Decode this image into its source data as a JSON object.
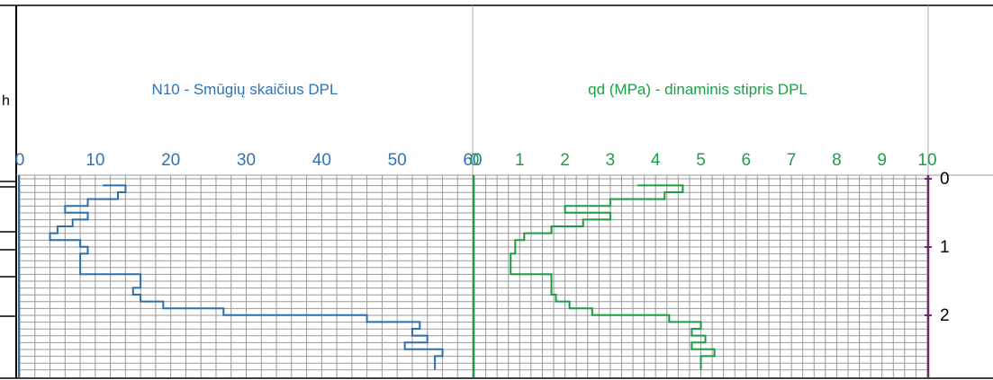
{
  "left_fragment": "h",
  "chart_data": [
    {
      "type": "line",
      "title": "N10 - Smūgių skaičius DPL",
      "xlim": [
        0,
        60
      ],
      "x_ticks": [
        "0",
        "10",
        "20",
        "30",
        "40",
        "50",
        "60"
      ],
      "ylim": [
        0,
        2.85
      ],
      "color": "#2f6fa8",
      "series": [
        {
          "values": [
            [
              11,
              0.15
            ],
            [
              14,
              0.15
            ],
            [
              14,
              0.25
            ],
            [
              13,
              0.25
            ],
            [
              13,
              0.35
            ],
            [
              9,
              0.35
            ],
            [
              9,
              0.45
            ],
            [
              6,
              0.45
            ],
            [
              6,
              0.55
            ],
            [
              9,
              0.55
            ],
            [
              9,
              0.65
            ],
            [
              7,
              0.65
            ],
            [
              7,
              0.75
            ],
            [
              5,
              0.75
            ],
            [
              5,
              0.85
            ],
            [
              4,
              0.85
            ],
            [
              4,
              0.95
            ],
            [
              8,
              0.95
            ],
            [
              8,
              1.05
            ],
            [
              9,
              1.05
            ],
            [
              9,
              1.15
            ],
            [
              8,
              1.15
            ],
            [
              8,
              1.45
            ],
            [
              16,
              1.45
            ],
            [
              16,
              1.65
            ],
            [
              15,
              1.65
            ],
            [
              15,
              1.75
            ],
            [
              16,
              1.75
            ],
            [
              16,
              1.85
            ],
            [
              19,
              1.85
            ],
            [
              19,
              1.95
            ],
            [
              27,
              1.95
            ],
            [
              27,
              2.05
            ],
            [
              46,
              2.05
            ],
            [
              46,
              2.15
            ],
            [
              53,
              2.15
            ],
            [
              53,
              2.25
            ],
            [
              52,
              2.25
            ],
            [
              52,
              2.35
            ],
            [
              54,
              2.35
            ],
            [
              54,
              2.45
            ],
            [
              51,
              2.45
            ],
            [
              51,
              2.55
            ],
            [
              56,
              2.55
            ],
            [
              56,
              2.65
            ],
            [
              55,
              2.65
            ],
            [
              55,
              2.85
            ]
          ]
        }
      ]
    },
    {
      "type": "line",
      "title": "qd (MPa) - dinaminis stipris DPL",
      "xlim": [
        0,
        10
      ],
      "x_ticks": [
        "0",
        "1",
        "2",
        "3",
        "4",
        "5",
        "6",
        "7",
        "8",
        "9",
        "10"
      ],
      "ylim": [
        0,
        2.85
      ],
      "color": "#1f9a44",
      "series": [
        {
          "values": [
            [
              3.6,
              0.15
            ],
            [
              4.6,
              0.15
            ],
            [
              4.6,
              0.25
            ],
            [
              4.2,
              0.25
            ],
            [
              4.2,
              0.35
            ],
            [
              3.0,
              0.35
            ],
            [
              3.0,
              0.45
            ],
            [
              2.0,
              0.45
            ],
            [
              2.0,
              0.55
            ],
            [
              3.0,
              0.55
            ],
            [
              3.0,
              0.65
            ],
            [
              2.4,
              0.65
            ],
            [
              2.4,
              0.75
            ],
            [
              1.7,
              0.75
            ],
            [
              1.7,
              0.85
            ],
            [
              1.1,
              0.85
            ],
            [
              1.1,
              0.95
            ],
            [
              0.9,
              0.95
            ],
            [
              0.9,
              1.15
            ],
            [
              0.8,
              1.15
            ],
            [
              0.8,
              1.45
            ],
            [
              1.7,
              1.45
            ],
            [
              1.7,
              1.75
            ],
            [
              1.8,
              1.75
            ],
            [
              1.8,
              1.85
            ],
            [
              2.1,
              1.85
            ],
            [
              2.1,
              1.95
            ],
            [
              2.6,
              1.95
            ],
            [
              2.6,
              2.05
            ],
            [
              4.3,
              2.05
            ],
            [
              4.3,
              2.15
            ],
            [
              5.0,
              2.15
            ],
            [
              5.0,
              2.25
            ],
            [
              4.8,
              2.25
            ],
            [
              4.8,
              2.35
            ],
            [
              5.1,
              2.35
            ],
            [
              5.1,
              2.45
            ],
            [
              4.8,
              2.45
            ],
            [
              4.8,
              2.55
            ],
            [
              5.3,
              2.55
            ],
            [
              5.3,
              2.65
            ],
            [
              5.0,
              2.65
            ],
            [
              5.0,
              2.85
            ]
          ]
        }
      ]
    }
  ],
  "depth_axis": {
    "ticks": [
      0,
      1,
      2
    ],
    "labels": [
      "0",
      "1",
      "2"
    ]
  }
}
